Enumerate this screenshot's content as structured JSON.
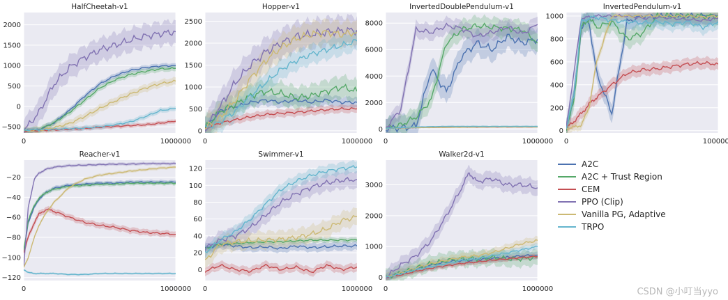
{
  "watermark": "CSDN @小叮当yyo",
  "legend": [
    {
      "name": "A2C",
      "color": "#4c72b0"
    },
    {
      "name": "A2C + Trust Region",
      "color": "#55a868"
    },
    {
      "name": "CEM",
      "color": "#c44e52"
    },
    {
      "name": "PPO (Clip)",
      "color": "#8172b2"
    },
    {
      "name": "Vanilla PG, Adaptive",
      "color": "#ccb974"
    },
    {
      "name": "TRPO",
      "color": "#64b5cd"
    }
  ],
  "chart_data": [
    {
      "type": "line",
      "title": "HalfCheetah-v1",
      "xlim": [
        0,
        1000000
      ],
      "xticks": [
        0,
        1000000
      ],
      "xtick_labels": [
        "0",
        "1000000"
      ],
      "ylim": [
        -650,
        2300
      ],
      "yticks": [
        -500,
        0,
        500,
        1000,
        1500,
        2000
      ],
      "ytick_labels": [
        "−500",
        "0",
        "500",
        "1000",
        "1500",
        "2000"
      ],
      "x": [
        0,
        100000,
        200000,
        300000,
        400000,
        500000,
        600000,
        700000,
        800000,
        900000,
        1000000
      ],
      "series": [
        {
          "name": "A2C",
          "values": [
            -600,
            -570,
            -400,
            -100,
            250,
            550,
            750,
            880,
            950,
            990,
            1000
          ],
          "band": 60
        },
        {
          "name": "A2C + Trust Region",
          "values": [
            -600,
            -570,
            -400,
            -150,
            150,
            450,
            650,
            780,
            860,
            920,
            930
          ],
          "band": 70
        },
        {
          "name": "CEM",
          "values": [
            -600,
            -590,
            -575,
            -560,
            -540,
            -510,
            -490,
            -470,
            -450,
            -410,
            -360
          ],
          "band": 50
        },
        {
          "name": "PPO (Clip)",
          "values": [
            -600,
            -150,
            550,
            950,
            1200,
            1380,
            1500,
            1620,
            1720,
            1780,
            1830
          ],
          "band": 280
        },
        {
          "name": "Vanilla PG, Adaptive",
          "values": [
            -600,
            -580,
            -520,
            -420,
            -250,
            -50,
            130,
            300,
            450,
            560,
            620
          ],
          "band": 90
        },
        {
          "name": "TRPO",
          "values": [
            -580,
            -570,
            -560,
            -545,
            -530,
            -500,
            -450,
            -380,
            -250,
            -100,
            -50
          ],
          "band": 60
        }
      ]
    },
    {
      "type": "line",
      "title": "Hopper-v1",
      "xlim": [
        0,
        1000000
      ],
      "xticks": [
        0,
        1000000
      ],
      "xtick_labels": [
        "0",
        "1000000"
      ],
      "ylim": [
        -50,
        2700
      ],
      "yticks": [
        0,
        500,
        1000,
        1500,
        2000,
        2500
      ],
      "ytick_labels": [
        "0",
        "500",
        "1000",
        "1500",
        "2000",
        "2500"
      ],
      "x": [
        0,
        100000,
        200000,
        300000,
        400000,
        500000,
        600000,
        700000,
        800000,
        900000,
        1000000
      ],
      "series": [
        {
          "name": "A2C",
          "values": [
            50,
            450,
            550,
            650,
            700,
            650,
            700,
            650,
            700,
            650,
            650
          ],
          "band": 120
        },
        {
          "name": "A2C + Trust Region",
          "values": [
            50,
            450,
            600,
            800,
            900,
            850,
            750,
            800,
            900,
            1000,
            900
          ],
          "band": 250
        },
        {
          "name": "CEM",
          "values": [
            50,
            180,
            250,
            320,
            370,
            400,
            420,
            450,
            480,
            500,
            500
          ],
          "band": 90
        },
        {
          "name": "PPO (Clip)",
          "values": [
            50,
            550,
            1100,
            1500,
            1800,
            2000,
            2150,
            2200,
            2250,
            2280,
            2300
          ],
          "band": 320
        },
        {
          "name": "Vanilla PG, Adaptive",
          "values": [
            50,
            300,
            700,
            1200,
            1600,
            1900,
            2100,
            2200,
            2250,
            2200,
            2250
          ],
          "band": 280
        },
        {
          "name": "TRPO",
          "values": [
            50,
            200,
            450,
            800,
            1100,
            1400,
            1600,
            1750,
            1850,
            1950,
            2050
          ],
          "band": 220
        }
      ]
    },
    {
      "type": "line",
      "title": "InvertedDoublePendulum-v1",
      "xlim": [
        0,
        1000000
      ],
      "xticks": [
        0,
        1000000
      ],
      "xtick_labels": [
        "0",
        "1000000"
      ],
      "ylim": [
        -300,
        8800
      ],
      "yticks": [
        0,
        2000,
        4000,
        6000,
        8000
      ],
      "ytick_labels": [
        "0",
        "2000",
        "4000",
        "6000",
        "8000"
      ],
      "x": [
        0,
        100000,
        200000,
        300000,
        400000,
        500000,
        600000,
        700000,
        800000,
        900000,
        1000000
      ],
      "series": [
        {
          "name": "A2C",
          "values": [
            50,
            80,
            200,
            4500,
            2800,
            5500,
            6500,
            6000,
            7000,
            6500,
            6800
          ],
          "band": 900
        },
        {
          "name": "A2C + Trust Region",
          "values": [
            50,
            300,
            900,
            2200,
            6500,
            7500,
            7800,
            7700,
            7600,
            7500,
            6500
          ],
          "band": 700
        },
        {
          "name": "CEM",
          "values": [
            50,
            90,
            110,
            120,
            130,
            140,
            140,
            150,
            150,
            150,
            150
          ],
          "band": 40
        },
        {
          "name": "PPO (Clip)",
          "values": [
            50,
            1500,
            7500,
            7300,
            7800,
            7600,
            7000,
            7300,
            7700,
            7200,
            7900
          ],
          "band": 600
        },
        {
          "name": "Vanilla PG, Adaptive",
          "values": [
            50,
            80,
            100,
            110,
            120,
            130,
            140,
            150,
            150,
            150,
            150
          ],
          "band": 30
        },
        {
          "name": "TRPO",
          "values": [
            50,
            100,
            150,
            180,
            200,
            200,
            200,
            200,
            200,
            200,
            200
          ],
          "band": 30
        }
      ]
    },
    {
      "type": "line",
      "title": "InvertedPendulum-v1",
      "xlim": [
        0,
        1000000
      ],
      "xticks": [
        0,
        1000000
      ],
      "xtick_labels": [
        "0",
        "1000000"
      ],
      "ylim": [
        -20,
        1030
      ],
      "yticks": [
        0,
        200,
        400,
        600,
        800,
        1000
      ],
      "ytick_labels": [
        "0",
        "200",
        "400",
        "600",
        "800",
        "1000"
      ],
      "x": [
        0,
        50000,
        100000,
        150000,
        200000,
        300000,
        400000,
        500000,
        600000,
        700000,
        800000,
        900000,
        1000000
      ],
      "series": [
        {
          "name": "A2C",
          "values": [
            20,
            300,
            900,
            950,
            500,
            150,
            950,
            1000,
            1000,
            1000,
            1000,
            1000,
            1000
          ],
          "band": 80
        },
        {
          "name": "A2C + Trust Region",
          "values": [
            20,
            250,
            900,
            980,
            900,
            950,
            800,
            850,
            1000,
            1000,
            1000,
            1000,
            1000
          ],
          "band": 80
        },
        {
          "name": "CEM",
          "values": [
            20,
            80,
            150,
            230,
            290,
            400,
            500,
            530,
            540,
            560,
            580,
            590,
            580
          ],
          "band": 50
        },
        {
          "name": "PPO (Clip)",
          "values": [
            20,
            500,
            980,
            990,
            1000,
            1000,
            1000,
            980,
            990,
            980,
            970,
            960,
            980
          ],
          "band": 40
        },
        {
          "name": "Vanilla PG, Adaptive",
          "values": [
            20,
            30,
            50,
            200,
            600,
            1000,
            1000,
            1000,
            1000,
            1000,
            1000,
            990,
            1000
          ],
          "band": 40
        },
        {
          "name": "TRPO",
          "values": [
            20,
            300,
            950,
            980,
            990,
            960,
            950,
            940,
            950,
            930,
            950,
            900,
            950
          ],
          "band": 60
        }
      ]
    },
    {
      "type": "line",
      "title": "Reacher-v1",
      "xlim": [
        0,
        1000000
      ],
      "xticks": [
        0,
        1000000
      ],
      "xtick_labels": [
        "0",
        "1000000"
      ],
      "ylim": [
        -123,
        -3
      ],
      "yticks": [
        -120,
        -100,
        -80,
        -60,
        -40,
        -20
      ],
      "ytick_labels": [
        "−120",
        "−100",
        "−80",
        "−60",
        "−40",
        "−20"
      ],
      "x": [
        0,
        30000,
        70000,
        100000,
        150000,
        200000,
        300000,
        400000,
        500000,
        600000,
        700000,
        800000,
        900000,
        1000000
      ],
      "series": [
        {
          "name": "A2C",
          "values": [
            -95,
            -65,
            -50,
            -42,
            -35,
            -31,
            -28,
            -27,
            -26,
            -26,
            -25,
            -25,
            -25,
            -25
          ],
          "band": 2
        },
        {
          "name": "A2C + Trust Region",
          "values": [
            -93,
            -63,
            -48,
            -41,
            -35,
            -32,
            -29,
            -28,
            -27,
            -27,
            -26,
            -26,
            -26,
            -26
          ],
          "band": 2
        },
        {
          "name": "CEM",
          "values": [
            -95,
            -80,
            -65,
            -57,
            -52,
            -54,
            -60,
            -65,
            -68,
            -70,
            -73,
            -75,
            -76,
            -77
          ],
          "band": 3
        },
        {
          "name": "PPO (Clip)",
          "values": [
            -110,
            -50,
            -22,
            -16,
            -12,
            -10,
            -8.5,
            -8,
            -7.5,
            -7,
            -7,
            -6.5,
            -6.5,
            -6.5
          ],
          "band": 1.5
        },
        {
          "name": "Vanilla PG, Adaptive",
          "values": [
            -110,
            -100,
            -80,
            -68,
            -55,
            -45,
            -30,
            -22,
            -18,
            -16,
            -14,
            -12.5,
            -11,
            -10
          ],
          "band": 1.5
        },
        {
          "name": "TRPO",
          "values": [
            -112,
            -115,
            -116,
            -116,
            -116,
            -116,
            -117,
            -117,
            -116,
            -116,
            -116,
            -116,
            -116,
            -116
          ],
          "band": 1
        }
      ]
    },
    {
      "type": "line",
      "title": "Swimmer-v1",
      "xlim": [
        0,
        1000000
      ],
      "xticks": [
        0,
        1000000
      ],
      "xtick_labels": [
        "0",
        "1000000"
      ],
      "ylim": [
        -13,
        130
      ],
      "yticks": [
        0,
        20,
        40,
        60,
        80,
        100,
        120
      ],
      "ytick_labels": [
        "0",
        "20",
        "40",
        "60",
        "80",
        "100",
        "120"
      ],
      "x": [
        0,
        100000,
        200000,
        300000,
        400000,
        500000,
        600000,
        700000,
        800000,
        900000,
        1000000
      ],
      "series": [
        {
          "name": "A2C",
          "values": [
            25,
            30,
            28,
            26,
            27,
            25,
            28,
            26,
            27,
            28,
            28
          ],
          "band": 5
        },
        {
          "name": "A2C + Trust Region",
          "values": [
            25,
            30,
            31,
            32,
            33,
            33,
            34,
            35,
            35,
            35,
            35
          ],
          "band": 3
        },
        {
          "name": "CEM",
          "values": [
            -2,
            5,
            0,
            -2,
            5,
            0,
            3,
            -3,
            5,
            0,
            3
          ],
          "band": 5
        },
        {
          "name": "PPO (Clip)",
          "values": [
            25,
            35,
            40,
            50,
            65,
            80,
            90,
            98,
            103,
            106,
            107
          ],
          "band": 10
        },
        {
          "name": "Vanilla PG, Adaptive",
          "values": [
            10,
            30,
            33,
            34,
            35,
            36,
            38,
            42,
            48,
            58,
            63
          ],
          "band": 10
        },
        {
          "name": "TRPO",
          "values": [
            20,
            35,
            45,
            60,
            78,
            95,
            105,
            112,
            117,
            120,
            122
          ],
          "band": 7
        }
      ]
    },
    {
      "type": "line",
      "title": "Walker2d-v1",
      "xlim": [
        0,
        1000000
      ],
      "xticks": [
        0,
        1000000
      ],
      "xtick_labels": [
        "0",
        "1000000"
      ],
      "ylim": [
        -100,
        3800
      ],
      "yticks": [
        0,
        1000,
        2000,
        3000
      ],
      "ytick_labels": [
        "0",
        "1000",
        "2000",
        "3000"
      ],
      "x": [
        0,
        100000,
        200000,
        300000,
        400000,
        500000,
        550000,
        600000,
        700000,
        800000,
        900000,
        1000000
      ],
      "series": [
        {
          "name": "A2C",
          "values": [
            0,
            150,
            280,
            400,
            500,
            550,
            550,
            580,
            620,
            650,
            700,
            720
          ],
          "band": 120
        },
        {
          "name": "A2C + Trust Region",
          "values": [
            0,
            150,
            300,
            450,
            550,
            600,
            600,
            600,
            650,
            600,
            600,
            650
          ],
          "band": 250
        },
        {
          "name": "CEM",
          "values": [
            0,
            80,
            200,
            300,
            380,
            450,
            480,
            500,
            560,
            600,
            650,
            680
          ],
          "band": 80
        },
        {
          "name": "PPO (Clip)",
          "values": [
            0,
            400,
            700,
            1200,
            2000,
            2900,
            3400,
            3100,
            3200,
            3000,
            3000,
            2900
          ],
          "band": 250
        },
        {
          "name": "Vanilla PG, Adaptive",
          "values": [
            0,
            150,
            300,
            450,
            550,
            650,
            680,
            700,
            800,
            950,
            1100,
            1200
          ],
          "band": 130
        },
        {
          "name": "TRPO",
          "values": [
            0,
            120,
            250,
            350,
            450,
            550,
            580,
            600,
            700,
            800,
            900,
            1000
          ],
          "band": 100
        }
      ]
    }
  ]
}
